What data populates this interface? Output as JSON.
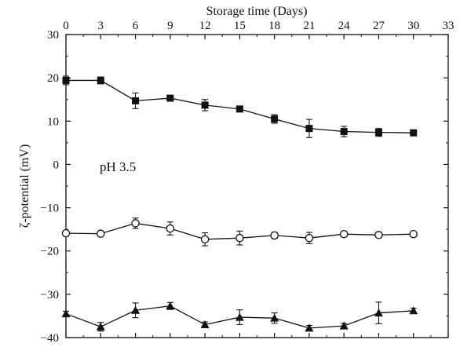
{
  "chart_data": {
    "type": "line",
    "xlabel": "Storage time (Days)",
    "ylabel": "ζ-potential (mV)",
    "xlim": [
      0,
      33
    ],
    "ylim": [
      -40,
      30
    ],
    "xticks": [
      0,
      3,
      6,
      9,
      12,
      15,
      18,
      21,
      24,
      27,
      30,
      33
    ],
    "yticks": [
      -40,
      -30,
      -20,
      -10,
      0,
      10,
      20,
      30
    ],
    "x_axis_position": "top",
    "grid": false,
    "annotation": "pH 3.5",
    "series": [
      {
        "marker": "filled-square",
        "x": [
          0,
          3,
          6,
          9,
          12,
          15,
          18,
          21,
          24,
          27,
          30
        ],
        "y": [
          19.4,
          19.4,
          14.7,
          15.3,
          13.7,
          12.8,
          10.5,
          8.3,
          7.6,
          7.4,
          7.3
        ],
        "err": [
          1.0,
          0.8,
          1.8,
          0.5,
          1.3,
          0.5,
          1.0,
          2.1,
          1.2,
          0.9,
          0.4
        ]
      },
      {
        "marker": "open-circle",
        "x": [
          0,
          3,
          6,
          9,
          12,
          15,
          18,
          21,
          24,
          27,
          30
        ],
        "y": [
          -15.9,
          -16.0,
          -13.6,
          -14.8,
          -17.3,
          -17.0,
          -16.4,
          -17.0,
          -16.1,
          -16.3,
          -16.1
        ],
        "err": [
          0.5,
          0.5,
          1.2,
          1.5,
          1.5,
          1.6,
          0.7,
          1.3,
          0.6,
          0.6,
          0.4
        ]
      },
      {
        "marker": "filled-triangle",
        "x": [
          0,
          3,
          6,
          9,
          12,
          15,
          18,
          21,
          24,
          27,
          30
        ],
        "y": [
          -34.5,
          -37.5,
          -33.7,
          -32.7,
          -37.0,
          -35.3,
          -35.5,
          -37.8,
          -37.3,
          -34.3,
          -33.8
        ],
        "err": [
          0.6,
          1.0,
          1.7,
          0.8,
          0.6,
          1.7,
          1.2,
          0.6,
          0.6,
          2.5,
          0.6
        ]
      }
    ]
  }
}
